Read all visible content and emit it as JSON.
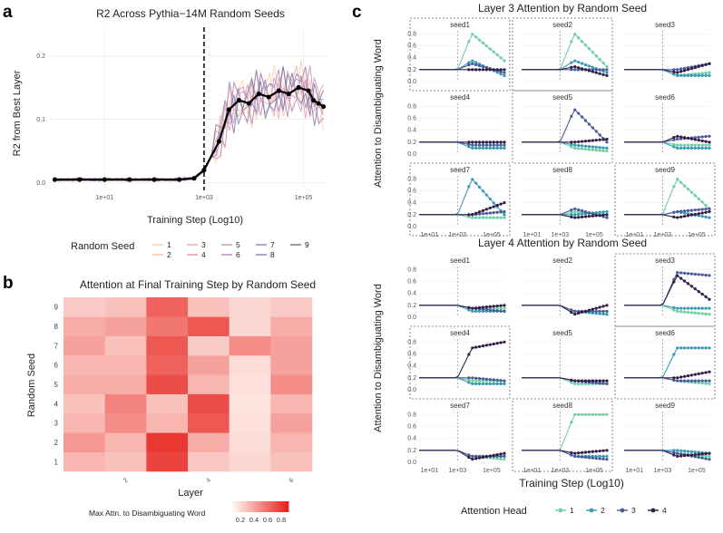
{
  "panels": {
    "a": "a",
    "b": "b",
    "c": "c"
  },
  "colors": {
    "seeds": [
      "#f6d2a8",
      "#f7c5a6",
      "#f1a79f",
      "#e594a5",
      "#c98fb3",
      "#b486bc",
      "#9d7fb8",
      "#8478b0",
      "#6f6f96"
    ],
    "heads": [
      "#6fd0a3",
      "#3a9ab4",
      "#4b5c9c",
      "#341e45"
    ],
    "heat_low": "#fff5f0",
    "heat_high": "#e8231e"
  },
  "chart_data": [
    {
      "id": "a",
      "type": "line",
      "title": "R2 Across Pythia−14M Random Seeds",
      "xlabel": "Training Step (Log10)",
      "ylabel": "R2 from Best  Layer",
      "x_scale": "log10",
      "x_ticks": [
        {
          "v": 1,
          "label": "1e+01"
        },
        {
          "v": 3,
          "label": "1e+03"
        },
        {
          "v": 5,
          "label": "1e+05"
        }
      ],
      "xlim": [
        -0.1,
        5.5
      ],
      "y_ticks": [
        {
          "v": 0,
          "label": "0.0"
        },
        {
          "v": 0.1,
          "label": "0.1"
        },
        {
          "v": 0.2,
          "label": "0.2"
        }
      ],
      "ylim": [
        -0.012,
        0.245
      ],
      "vline_x": 3,
      "legend_title": "Random Seed",
      "legend_labels": [
        "1",
        "2",
        "3",
        "4",
        "5",
        "6",
        "7",
        "8",
        "9"
      ],
      "mean_series": {
        "x": [
          0,
          0.5,
          1,
          1.5,
          2,
          2.5,
          2.8,
          3,
          3.3,
          3.5,
          3.7,
          3.9,
          4.1,
          4.3,
          4.5,
          4.7,
          4.9,
          5.1,
          5.2,
          5.3,
          5.4
        ],
        "y": [
          0.005,
          0.005,
          0.005,
          0.005,
          0.005,
          0.005,
          0.007,
          0.02,
          0.065,
          0.115,
          0.13,
          0.125,
          0.14,
          0.135,
          0.145,
          0.14,
          0.15,
          0.145,
          0.13,
          0.125,
          0.12
        ]
      }
    },
    {
      "id": "b",
      "type": "heatmap",
      "title": "Attention at Final Training Step by Random Seed",
      "xlabel": "Layer",
      "ylabel": "Random Seed",
      "x_tick_labels": [
        "2",
        "4",
        "6"
      ],
      "y_categories": [
        "1",
        "2",
        "3",
        "4",
        "5",
        "6",
        "7",
        "8",
        "9"
      ],
      "legend_title": "Max Attn. to Disambiguating Word",
      "legend_ticks": [
        "0.2",
        "0.4",
        "0.6",
        "0.8"
      ],
      "layers": [
        1,
        2,
        3,
        4,
        5,
        6
      ],
      "values": [
        [
          0.3,
          0.25,
          0.85,
          0.22,
          0.15,
          0.25
        ],
        [
          0.45,
          0.3,
          0.9,
          0.35,
          0.12,
          0.3
        ],
        [
          0.3,
          0.5,
          0.3,
          0.75,
          0.1,
          0.4
        ],
        [
          0.25,
          0.55,
          0.25,
          0.8,
          0.08,
          0.3
        ],
        [
          0.35,
          0.35,
          0.8,
          0.3,
          0.1,
          0.5
        ],
        [
          0.3,
          0.3,
          0.7,
          0.4,
          0.12,
          0.4
        ],
        [
          0.4,
          0.25,
          0.75,
          0.2,
          0.5,
          0.4
        ],
        [
          0.35,
          0.4,
          0.6,
          0.75,
          0.15,
          0.35
        ],
        [
          0.2,
          0.25,
          0.7,
          0.25,
          0.15,
          0.2
        ]
      ]
    },
    {
      "id": "c3",
      "type": "line",
      "title": "Layer 3 Attention by Random Seed",
      "ylabel": "Attention to Disambiguating Word",
      "facets": [
        "seed1",
        "seed2",
        "seed3",
        "seed4",
        "seed5",
        "seed6",
        "seed7",
        "seed8",
        "seed9"
      ],
      "highlighted": [
        0,
        1,
        4,
        6,
        8
      ],
      "y_ticks": [
        "0.0",
        "0.2",
        "0.4",
        "0.6",
        "0.8"
      ],
      "x_ticks": [
        "1e+01",
        "1e+03",
        "1e+05"
      ],
      "curves": [
        [
          [
            0.2,
            0.2,
            0.8,
            0.35
          ],
          [
            0.2,
            0.2,
            0.35,
            0.1
          ],
          [
            0.2,
            0.2,
            0.3,
            0.15
          ],
          [
            0.2,
            0.2,
            0.2,
            0.2
          ]
        ],
        [
          [
            0.2,
            0.2,
            0.8,
            0.25
          ],
          [
            0.2,
            0.2,
            0.35,
            0.15
          ],
          [
            0.2,
            0.2,
            0.2,
            0.2
          ],
          [
            0.2,
            0.2,
            0.25,
            0.1
          ]
        ],
        [
          [
            0.2,
            0.2,
            0.1,
            0.15
          ],
          [
            0.2,
            0.2,
            0.1,
            0.1
          ],
          [
            0.2,
            0.2,
            0.2,
            0.3
          ],
          [
            0.2,
            0.2,
            0.15,
            0.3
          ]
        ],
        [
          [
            0.2,
            0.2,
            0.2,
            0.2
          ],
          [
            0.2,
            0.2,
            0.1,
            0.1
          ],
          [
            0.2,
            0.2,
            0.15,
            0.15
          ],
          [
            0.2,
            0.2,
            0.2,
            0.2
          ]
        ],
        [
          [
            0.2,
            0.2,
            0.1,
            0.05
          ],
          [
            0.2,
            0.2,
            0.15,
            0.1
          ],
          [
            0.2,
            0.2,
            0.75,
            0.2
          ],
          [
            0.2,
            0.2,
            0.2,
            0.25
          ]
        ],
        [
          [
            0.2,
            0.2,
            0.15,
            0.15
          ],
          [
            0.2,
            0.2,
            0.1,
            0.1
          ],
          [
            0.2,
            0.2,
            0.25,
            0.3
          ],
          [
            0.2,
            0.2,
            0.3,
            0.2
          ]
        ],
        [
          [
            0.2,
            0.2,
            0.15,
            0.15
          ],
          [
            0.2,
            0.2,
            0.8,
            0.2
          ],
          [
            0.2,
            0.2,
            0.2,
            0.25
          ],
          [
            0.2,
            0.2,
            0.2,
            0.4
          ]
        ],
        [
          [
            0.2,
            0.2,
            0.25,
            0.2
          ],
          [
            0.2,
            0.2,
            0.2,
            0.25
          ],
          [
            0.2,
            0.2,
            0.3,
            0.15
          ],
          [
            0.2,
            0.2,
            0.15,
            0.2
          ]
        ],
        [
          [
            0.2,
            0.2,
            0.8,
            0.3
          ],
          [
            0.2,
            0.2,
            0.25,
            0.15
          ],
          [
            0.2,
            0.2,
            0.25,
            0.3
          ],
          [
            0.2,
            0.2,
            0.15,
            0.25
          ]
        ]
      ]
    },
    {
      "id": "c4",
      "type": "line",
      "title": "Layer 4 Attention by Random Seed",
      "ylabel": "Attention to Disambiguating Word",
      "xlabel": "Training Step (Log10)",
      "facets": [
        "seed1",
        "seed2",
        "seed3",
        "seed4",
        "seed5",
        "seed6",
        "seed7",
        "seed8",
        "seed9"
      ],
      "highlighted": [
        2,
        3,
        5,
        7
      ],
      "y_ticks": [
        "0.0",
        "0.2",
        "0.4",
        "0.6",
        "0.8"
      ],
      "x_ticks": [
        "1e+01",
        "1e+03",
        "1e+05"
      ],
      "legend_title": "Attention Head",
      "legend_labels": [
        "1",
        "2",
        "3",
        "4"
      ],
      "curves": [
        [
          [
            0.2,
            0.2,
            0.15,
            0.15
          ],
          [
            0.2,
            0.2,
            0.1,
            0.1
          ],
          [
            0.2,
            0.2,
            0.15,
            0.1
          ],
          [
            0.2,
            0.2,
            0.15,
            0.2
          ]
        ],
        [
          [
            0.2,
            0.2,
            0.1,
            0.05
          ],
          [
            0.2,
            0.2,
            0.1,
            0.05
          ],
          [
            0.2,
            0.2,
            0.1,
            0.1
          ],
          [
            0.2,
            0.2,
            0.05,
            0.2
          ]
        ],
        [
          [
            0.2,
            0.2,
            0.1,
            0.05
          ],
          [
            0.2,
            0.2,
            0.15,
            0.15
          ],
          [
            0.2,
            0.2,
            0.75,
            0.7
          ],
          [
            0.2,
            0.2,
            0.7,
            0.3
          ]
        ],
        [
          [
            0.2,
            0.2,
            0.15,
            0.15
          ],
          [
            0.2,
            0.2,
            0.1,
            0.1
          ],
          [
            0.2,
            0.2,
            0.2,
            0.15
          ],
          [
            0.2,
            0.2,
            0.7,
            0.8
          ]
        ],
        [
          [
            0.2,
            0.2,
            0.1,
            0.1
          ],
          [
            0.2,
            0.2,
            0.15,
            0.15
          ],
          [
            0.2,
            0.2,
            0.15,
            0.1
          ],
          [
            0.2,
            0.2,
            0.15,
            0.15
          ]
        ],
        [
          [
            0.2,
            0.2,
            0.15,
            0.1
          ],
          [
            0.2,
            0.2,
            0.7,
            0.7
          ],
          [
            0.2,
            0.2,
            0.15,
            0.15
          ],
          [
            0.2,
            0.2,
            0.2,
            0.3
          ]
        ],
        [
          [
            0.2,
            0.2,
            0.1,
            0.05
          ],
          [
            0.2,
            0.2,
            0.1,
            0.1
          ],
          [
            0.2,
            0.2,
            0.1,
            0.1
          ],
          [
            0.2,
            0.2,
            0.05,
            0.15
          ]
        ],
        [
          [
            0.2,
            0.2,
            0.8,
            0.8
          ],
          [
            0.2,
            0.2,
            0.1,
            0.1
          ],
          [
            0.2,
            0.2,
            0.1,
            0.05
          ],
          [
            0.2,
            0.2,
            0.15,
            0.2
          ]
        ],
        [
          [
            0.2,
            0.2,
            0.15,
            0.1
          ],
          [
            0.2,
            0.2,
            0.2,
            0.15
          ],
          [
            0.2,
            0.2,
            0.15,
            0.05
          ],
          [
            0.2,
            0.2,
            0.1,
            0.15
          ]
        ]
      ]
    }
  ]
}
